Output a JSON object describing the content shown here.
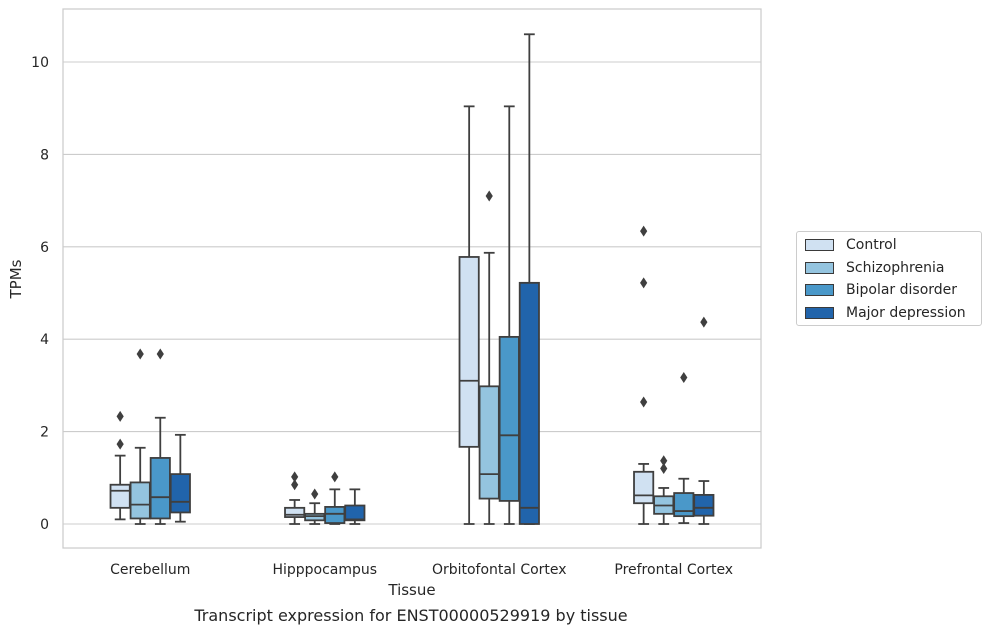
{
  "caption": "Transcript expression for ENST00000529919 by tissue",
  "chart_data": {
    "type": "box",
    "xlabel": "Tissue",
    "ylabel": "TPMs",
    "ylim": [
      -0.5,
      11.15
    ],
    "yticks": [
      0,
      2,
      4,
      6,
      8,
      10
    ],
    "grid": "horizontal",
    "legend_position": "right",
    "categories": [
      "Cerebellum",
      "Hipppocampus",
      "Orbitofontal Cortex",
      "Prefrontal Cortex"
    ],
    "series": [
      {
        "name": "Control",
        "color": "#d0e1f2",
        "boxes": [
          {
            "whislo": 0.1,
            "q1": 0.35,
            "med": 0.72,
            "q3": 0.85,
            "whishi": 1.48,
            "fliers": [
              1.73,
              2.33
            ]
          },
          {
            "whislo": 0.0,
            "q1": 0.15,
            "med": 0.2,
            "q3": 0.35,
            "whishi": 0.52,
            "fliers": [
              0.85,
              1.02
            ]
          },
          {
            "whislo": 0.0,
            "q1": 1.67,
            "med": 3.1,
            "q3": 5.78,
            "whishi": 9.04,
            "fliers": []
          },
          {
            "whislo": 0.0,
            "q1": 0.45,
            "med": 0.62,
            "q3": 1.13,
            "whishi": 1.3,
            "fliers": [
              2.64,
              5.22,
              6.34
            ]
          }
        ]
      },
      {
        "name": "Schizophrenia",
        "color": "#94c4df",
        "boxes": [
          {
            "whislo": 0.0,
            "q1": 0.12,
            "med": 0.42,
            "q3": 0.9,
            "whishi": 1.65,
            "fliers": [
              3.68
            ]
          },
          {
            "whislo": 0.0,
            "q1": 0.08,
            "med": 0.17,
            "q3": 0.22,
            "whishi": 0.45,
            "fliers": [
              0.65
            ]
          },
          {
            "whislo": 0.0,
            "q1": 0.55,
            "med": 1.08,
            "q3": 2.98,
            "whishi": 5.87,
            "fliers": [
              7.1
            ]
          },
          {
            "whislo": 0.0,
            "q1": 0.22,
            "med": 0.4,
            "q3": 0.6,
            "whishi": 0.78,
            "fliers": [
              1.2,
              1.37
            ]
          }
        ]
      },
      {
        "name": "Bipolar disorder",
        "color": "#4a98c9",
        "boxes": [
          {
            "whislo": 0.0,
            "q1": 0.12,
            "med": 0.58,
            "q3": 1.43,
            "whishi": 2.3,
            "fliers": [
              3.68
            ]
          },
          {
            "whislo": 0.0,
            "q1": 0.02,
            "med": 0.22,
            "q3": 0.37,
            "whishi": 0.75,
            "fliers": [
              1.02
            ]
          },
          {
            "whislo": 0.0,
            "q1": 0.5,
            "med": 1.92,
            "q3": 4.05,
            "whishi": 9.04,
            "fliers": []
          },
          {
            "whislo": 0.02,
            "q1": 0.17,
            "med": 0.28,
            "q3": 0.67,
            "whishi": 0.98,
            "fliers": [
              3.17
            ]
          }
        ]
      },
      {
        "name": "Major depression",
        "color": "#2164ab",
        "boxes": [
          {
            "whislo": 0.05,
            "q1": 0.25,
            "med": 0.48,
            "q3": 1.08,
            "whishi": 1.93,
            "fliers": []
          },
          {
            "whislo": 0.0,
            "q1": 0.08,
            "med": 0.1,
            "q3": 0.4,
            "whishi": 0.75,
            "fliers": []
          },
          {
            "whislo": 0.0,
            "q1": 0.0,
            "med": 0.35,
            "q3": 5.22,
            "whishi": 10.6,
            "fliers": []
          },
          {
            "whislo": 0.0,
            "q1": 0.18,
            "med": 0.35,
            "q3": 0.63,
            "whishi": 0.93,
            "fliers": [
              4.37
            ]
          }
        ]
      }
    ]
  }
}
